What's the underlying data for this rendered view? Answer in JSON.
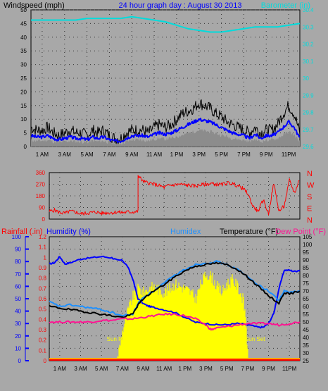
{
  "chart_data": [
    {
      "type": "line",
      "title": "24 hour graph day : August 30 2013",
      "ylabel": "Windspeed (mph)",
      "y2label": "Barometer (in)",
      "ylim": [
        0,
        50
      ],
      "y2lim": [
        29.6,
        30.4
      ],
      "yticks": [
        "0",
        "5",
        "10",
        "15",
        "20",
        "25",
        "30",
        "35",
        "40",
        "45",
        "50"
      ],
      "y2ticks": [
        "29.6",
        "29.7",
        "29.8",
        "29.9",
        "30",
        "30.1",
        "30.2",
        "30.3",
        "30.4"
      ],
      "xlim": [
        0,
        24
      ],
      "xticks": [
        "1 AM",
        "3 AM",
        "5 AM",
        "7 AM",
        "9 AM",
        "11 AM",
        "1 PM",
        "3 PM",
        "5 PM",
        "7 PM",
        "9 PM",
        "11PM"
      ],
      "grid": true,
      "series": [
        {
          "role": "gust",
          "color": "#000000",
          "axis": "left",
          "x": [
            0,
            0.5,
            1,
            1.5,
            2,
            2.5,
            3,
            3.5,
            4,
            4.5,
            5,
            5.5,
            6,
            6.5,
            7,
            7.5,
            8,
            8.5,
            9,
            9.5,
            10,
            10.5,
            11,
            11.5,
            12,
            12.5,
            13,
            13.5,
            14,
            14.5,
            15,
            15.5,
            16,
            16.5,
            17,
            17.5,
            18,
            18.5,
            19,
            19.5,
            20,
            20.5,
            21,
            21.5,
            22,
            22.5,
            23,
            23.5,
            24
          ],
          "values": [
            7,
            6,
            6,
            7,
            5,
            4,
            5,
            6,
            5,
            5,
            4,
            6,
            5,
            6,
            4,
            3,
            3,
            5,
            6,
            6,
            6,
            5,
            7,
            8,
            7,
            8,
            10,
            12,
            13,
            14,
            16,
            15,
            14,
            12,
            11,
            9,
            8,
            7,
            6,
            5,
            7,
            5,
            6,
            6,
            8,
            12,
            15,
            12,
            5
          ]
        },
        {
          "role": "average",
          "color": "#0000ff",
          "axis": "left",
          "x": [
            0,
            0.5,
            1,
            1.5,
            2,
            2.5,
            3,
            3.5,
            4,
            4.5,
            5,
            5.5,
            6,
            6.5,
            7,
            7.5,
            8,
            8.5,
            9,
            9.5,
            10,
            10.5,
            11,
            11.5,
            12,
            12.5,
            13,
            13.5,
            14,
            14.5,
            15,
            15.5,
            16,
            16.5,
            17,
            17.5,
            18,
            18.5,
            19,
            19.5,
            20,
            20.5,
            21,
            21.5,
            22,
            22.5,
            23,
            23.5,
            24
          ],
          "values": [
            4,
            3.5,
            3.5,
            4,
            3,
            2.5,
            3,
            3.5,
            3,
            3,
            2.5,
            3.5,
            3,
            3.5,
            2.5,
            2,
            2,
            3,
            4,
            4,
            4,
            3.5,
            4.5,
            5,
            4.5,
            5,
            6,
            7,
            8,
            9,
            10,
            9.5,
            9,
            8,
            7,
            6,
            5,
            4.5,
            4,
            3,
            4.5,
            3,
            4,
            4,
            5,
            7,
            9,
            7,
            3
          ]
        },
        {
          "role": "barometer",
          "color": "#00dcdc",
          "axis": "right",
          "x": [
            0,
            1,
            2,
            3,
            4,
            5,
            6,
            7,
            8,
            9,
            10,
            11,
            12,
            13,
            14,
            15,
            16,
            17,
            18,
            19,
            20,
            21,
            22,
            23,
            24
          ],
          "values": [
            30.34,
            30.34,
            30.34,
            30.34,
            30.34,
            30.35,
            30.35,
            30.35,
            30.35,
            30.36,
            30.35,
            30.34,
            30.33,
            30.31,
            30.29,
            30.28,
            30.27,
            30.27,
            30.28,
            30.29,
            30.3,
            30.3,
            30.3,
            30.31,
            30.32
          ]
        }
      ]
    },
    {
      "type": "scatter",
      "ylim": [
        0,
        360
      ],
      "yticks": [
        "0",
        "90",
        "180",
        "270",
        "360"
      ],
      "y2ticks": [
        "N",
        "E",
        "S",
        "W",
        "N"
      ],
      "xlim": [
        0,
        24
      ],
      "grid": true,
      "series": [
        {
          "role": "wind-direction",
          "color": "#ff0000",
          "x": [
            0,
            0.5,
            1,
            1.5,
            2,
            2.5,
            3,
            3.5,
            4,
            4.5,
            5,
            5.5,
            6,
            6.5,
            7,
            7.5,
            8,
            8.5,
            8.5,
            9,
            9.5,
            10,
            10.5,
            11,
            11.5,
            12,
            12.5,
            13,
            13.5,
            14,
            14.5,
            15,
            15.5,
            16,
            16.5,
            17,
            17.5,
            18,
            18.5,
            19,
            19.5,
            20,
            20.5,
            21,
            21.5,
            22,
            22.5,
            23,
            23.5,
            24
          ],
          "values": [
            60,
            70,
            50,
            45,
            60,
            55,
            40,
            45,
            50,
            55,
            45,
            50,
            50,
            55,
            50,
            55,
            55,
            60,
            340,
            290,
            280,
            270,
            260,
            245,
            260,
            265,
            270,
            265,
            260,
            255,
            265,
            270,
            275,
            270,
            265,
            280,
            275,
            260,
            240,
            200,
            100,
            60,
            150,
            40,
            280,
            60,
            100,
            300,
            200,
            320
          ]
        }
      ]
    },
    {
      "type": "line",
      "labels": {
        "rainfall": "Rainfall (.in)",
        "humidity": "Humidity (%)",
        "humidex": "Humidex",
        "temperature": "Temperature (°F)",
        "dewpoint": "Dew Point (°F)"
      },
      "ylim_humidity": [
        0,
        100
      ],
      "ylim_rain": [
        0,
        1.2
      ],
      "ylim_temp": [
        25,
        105
      ],
      "yticks_humidity": [
        "0",
        "10",
        "20",
        "30",
        "40",
        "50",
        "60",
        "70",
        "80",
        "90",
        "100"
      ],
      "yticks_rain": [
        "0",
        "0.1",
        "0.2",
        "0.3",
        "0.4",
        "0.5",
        "0.6",
        "0.7",
        "0.8",
        "0.9",
        "1",
        "1.1",
        "1.2"
      ],
      "yticks_temp": [
        "25",
        "30",
        "35",
        "40",
        "45",
        "50",
        "55",
        "60",
        "65",
        "70",
        "75",
        "80",
        "85",
        "90",
        "95",
        "100",
        "105"
      ],
      "xlim": [
        0,
        24
      ],
      "grid": true,
      "annotations": [
        {
          "text": "Sun Rise",
          "x": 6.6
        },
        {
          "text": "Sun Set",
          "x": 19.7
        }
      ],
      "series": [
        {
          "role": "humidity",
          "color": "#0000ff",
          "axis": "humidity",
          "x": [
            0,
            0.5,
            1,
            1.5,
            2,
            3,
            4,
            5,
            6,
            6.5,
            7,
            7.5,
            8,
            8.5,
            9,
            9.5,
            10,
            11,
            12,
            13,
            14,
            15,
            16,
            17,
            18,
            19,
            20,
            20.5,
            21,
            21.5,
            22,
            22.5,
            23,
            23.5,
            24
          ],
          "values": [
            78,
            79,
            84,
            78,
            79,
            82,
            83,
            84,
            83,
            81,
            81,
            76,
            66,
            50,
            46,
            44,
            43,
            41,
            39,
            35,
            31,
            30,
            29,
            29,
            30,
            29,
            27,
            27,
            30,
            38,
            58,
            73,
            73,
            72,
            73
          ]
        },
        {
          "role": "humidex",
          "color": "#1e90ff",
          "axis": "temp",
          "x": [
            0,
            1,
            2,
            3,
            4,
            5,
            6,
            7,
            8,
            8.5,
            9,
            10,
            11,
            12,
            13,
            14,
            15,
            16,
            17,
            18,
            19,
            20,
            21,
            22,
            22.5,
            23,
            24
          ],
          "values": [
            63,
            60,
            61,
            60,
            59,
            58,
            56,
            54,
            55,
            62,
            66,
            70,
            75,
            80,
            84,
            87,
            88,
            89,
            87,
            84,
            79,
            74,
            70,
            64,
            70,
            69,
            70
          ]
        },
        {
          "role": "temperature",
          "color": "#000000",
          "axis": "temp",
          "x": [
            0,
            1,
            2,
            3,
            4,
            5,
            6,
            7,
            8,
            8.5,
            9,
            10,
            11,
            12,
            13,
            14,
            15,
            16,
            17,
            18,
            19,
            20,
            21,
            22,
            22.5,
            23,
            24
          ],
          "values": [
            60,
            59,
            58,
            57,
            56,
            55,
            54,
            53,
            55,
            61,
            65,
            70,
            74,
            79,
            83,
            86,
            87,
            88,
            87,
            84,
            79,
            73,
            67,
            62,
            69,
            68,
            70
          ]
        },
        {
          "role": "dewpoint",
          "color": "#ff1493",
          "axis": "temp",
          "x": [
            0,
            1,
            2,
            3,
            4,
            5,
            6,
            7,
            8,
            9,
            10,
            11,
            12,
            13,
            14,
            15,
            15.5,
            16,
            17,
            18,
            19,
            20,
            21,
            22,
            23,
            24
          ],
          "values": [
            50,
            50,
            50,
            50,
            50,
            51,
            51,
            52,
            52,
            53,
            54,
            55,
            55,
            54,
            52,
            48,
            45,
            46,
            47,
            48,
            49,
            49,
            49,
            48,
            49,
            50
          ]
        },
        {
          "role": "solar",
          "color": "#ffff00",
          "axis": "percent",
          "x": [
            6.5,
            6.8,
            7,
            7.5,
            8,
            8.5,
            9,
            9.5,
            10,
            10.5,
            11,
            11.5,
            12,
            12.5,
            13,
            13.5,
            14,
            14.5,
            15,
            15.5,
            16,
            16.5,
            17,
            17.5,
            18,
            18.5,
            18.8,
            19
          ],
          "values": [
            3,
            15,
            25,
            40,
            52,
            58,
            55,
            58,
            60,
            57,
            55,
            58,
            62,
            60,
            58,
            55,
            50,
            62,
            70,
            68,
            60,
            55,
            62,
            65,
            60,
            50,
            35,
            0
          ]
        }
      ]
    }
  ]
}
